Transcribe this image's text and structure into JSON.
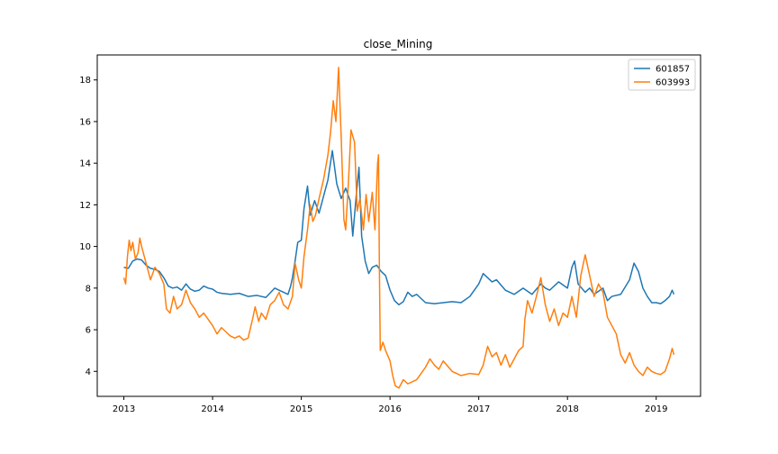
{
  "chart_data": {
    "type": "line",
    "title": "close_Mining",
    "xlabel": "",
    "ylabel": "",
    "x_ticks": [
      "2013",
      "2014",
      "2015",
      "2016",
      "2017",
      "2018",
      "2019"
    ],
    "y_ticks": [
      4,
      6,
      8,
      10,
      12,
      14,
      16,
      18
    ],
    "xlim": [
      2012.7,
      2019.5
    ],
    "ylim": [
      2.8,
      19.2
    ],
    "grid": false,
    "legend_position": "top-right",
    "series": [
      {
        "name": "601857",
        "color": "#1f77b4",
        "points": [
          [
            2013.0,
            9.0
          ],
          [
            2013.05,
            8.95
          ],
          [
            2013.1,
            9.3
          ],
          [
            2013.15,
            9.4
          ],
          [
            2013.2,
            9.35
          ],
          [
            2013.25,
            9.1
          ],
          [
            2013.3,
            8.95
          ],
          [
            2013.35,
            8.9
          ],
          [
            2013.4,
            8.8
          ],
          [
            2013.45,
            8.5
          ],
          [
            2013.5,
            8.1
          ],
          [
            2013.55,
            8.0
          ],
          [
            2013.6,
            8.05
          ],
          [
            2013.65,
            7.9
          ],
          [
            2013.7,
            8.2
          ],
          [
            2013.75,
            7.95
          ],
          [
            2013.8,
            7.85
          ],
          [
            2013.85,
            7.9
          ],
          [
            2013.9,
            8.1
          ],
          [
            2013.95,
            8.0
          ],
          [
            2014.0,
            7.95
          ],
          [
            2014.05,
            7.8
          ],
          [
            2014.1,
            7.75
          ],
          [
            2014.2,
            7.7
          ],
          [
            2014.3,
            7.75
          ],
          [
            2014.4,
            7.6
          ],
          [
            2014.5,
            7.65
          ],
          [
            2014.6,
            7.55
          ],
          [
            2014.7,
            8.0
          ],
          [
            2014.75,
            7.9
          ],
          [
            2014.8,
            7.8
          ],
          [
            2014.85,
            7.7
          ],
          [
            2014.88,
            8.1
          ],
          [
            2014.9,
            8.5
          ],
          [
            2014.93,
            9.3
          ],
          [
            2014.96,
            10.2
          ],
          [
            2015.0,
            10.3
          ],
          [
            2015.03,
            11.8
          ],
          [
            2015.07,
            12.9
          ],
          [
            2015.1,
            11.5
          ],
          [
            2015.15,
            12.2
          ],
          [
            2015.2,
            11.6
          ],
          [
            2015.25,
            12.4
          ],
          [
            2015.3,
            13.2
          ],
          [
            2015.35,
            14.6
          ],
          [
            2015.4,
            13.0
          ],
          [
            2015.45,
            12.3
          ],
          [
            2015.5,
            12.8
          ],
          [
            2015.55,
            12.2
          ],
          [
            2015.58,
            10.5
          ],
          [
            2015.62,
            12.5
          ],
          [
            2015.65,
            13.8
          ],
          [
            2015.68,
            10.5
          ],
          [
            2015.72,
            9.3
          ],
          [
            2015.76,
            8.7
          ],
          [
            2015.8,
            9.0
          ],
          [
            2015.85,
            9.1
          ],
          [
            2015.9,
            8.8
          ],
          [
            2015.95,
            8.6
          ],
          [
            2016.0,
            7.9
          ],
          [
            2016.05,
            7.4
          ],
          [
            2016.1,
            7.2
          ],
          [
            2016.15,
            7.35
          ],
          [
            2016.2,
            7.8
          ],
          [
            2016.25,
            7.6
          ],
          [
            2016.3,
            7.7
          ],
          [
            2016.4,
            7.3
          ],
          [
            2016.5,
            7.25
          ],
          [
            2016.6,
            7.3
          ],
          [
            2016.7,
            7.35
          ],
          [
            2016.8,
            7.3
          ],
          [
            2016.9,
            7.6
          ],
          [
            2017.0,
            8.2
          ],
          [
            2017.05,
            8.7
          ],
          [
            2017.1,
            8.5
          ],
          [
            2017.15,
            8.3
          ],
          [
            2017.2,
            8.4
          ],
          [
            2017.3,
            7.9
          ],
          [
            2017.4,
            7.7
          ],
          [
            2017.5,
            8.0
          ],
          [
            2017.6,
            7.7
          ],
          [
            2017.7,
            8.2
          ],
          [
            2017.75,
            8.0
          ],
          [
            2017.8,
            7.9
          ],
          [
            2017.9,
            8.3
          ],
          [
            2018.0,
            8.0
          ],
          [
            2018.05,
            9.0
          ],
          [
            2018.08,
            9.3
          ],
          [
            2018.12,
            8.2
          ],
          [
            2018.2,
            7.8
          ],
          [
            2018.25,
            8.0
          ],
          [
            2018.3,
            7.7
          ],
          [
            2018.4,
            8.0
          ],
          [
            2018.45,
            7.4
          ],
          [
            2018.5,
            7.6
          ],
          [
            2018.6,
            7.7
          ],
          [
            2018.7,
            8.4
          ],
          [
            2018.75,
            9.2
          ],
          [
            2018.8,
            8.8
          ],
          [
            2018.85,
            8.0
          ],
          [
            2018.9,
            7.6
          ],
          [
            2018.95,
            7.3
          ],
          [
            2019.0,
            7.3
          ],
          [
            2019.05,
            7.25
          ],
          [
            2019.1,
            7.4
          ],
          [
            2019.15,
            7.6
          ],
          [
            2019.18,
            7.9
          ],
          [
            2019.2,
            7.7
          ]
        ]
      },
      {
        "name": "603993",
        "color": "#ff7f0e",
        "points": [
          [
            2013.0,
            8.5
          ],
          [
            2013.02,
            8.2
          ],
          [
            2013.04,
            9.5
          ],
          [
            2013.06,
            10.3
          ],
          [
            2013.08,
            9.8
          ],
          [
            2013.1,
            10.2
          ],
          [
            2013.13,
            9.4
          ],
          [
            2013.16,
            9.7
          ],
          [
            2013.18,
            10.4
          ],
          [
            2013.2,
            10.0
          ],
          [
            2013.25,
            9.2
          ],
          [
            2013.3,
            8.4
          ],
          [
            2013.35,
            9.0
          ],
          [
            2013.4,
            8.7
          ],
          [
            2013.45,
            8.2
          ],
          [
            2013.48,
            7.0
          ],
          [
            2013.52,
            6.8
          ],
          [
            2013.56,
            7.6
          ],
          [
            2013.6,
            7.0
          ],
          [
            2013.65,
            7.2
          ],
          [
            2013.7,
            7.9
          ],
          [
            2013.75,
            7.3
          ],
          [
            2013.8,
            7.0
          ],
          [
            2013.85,
            6.6
          ],
          [
            2013.9,
            6.8
          ],
          [
            2013.95,
            6.5
          ],
          [
            2014.0,
            6.2
          ],
          [
            2014.05,
            5.8
          ],
          [
            2014.1,
            6.1
          ],
          [
            2014.15,
            5.9
          ],
          [
            2014.2,
            5.7
          ],
          [
            2014.25,
            5.6
          ],
          [
            2014.3,
            5.7
          ],
          [
            2014.35,
            5.5
          ],
          [
            2014.4,
            5.6
          ],
          [
            2014.45,
            6.5
          ],
          [
            2014.48,
            7.1
          ],
          [
            2014.52,
            6.4
          ],
          [
            2014.55,
            6.8
          ],
          [
            2014.6,
            6.5
          ],
          [
            2014.65,
            7.2
          ],
          [
            2014.7,
            7.4
          ],
          [
            2014.75,
            7.8
          ],
          [
            2014.8,
            7.2
          ],
          [
            2014.85,
            7.0
          ],
          [
            2014.9,
            7.6
          ],
          [
            2014.93,
            9.2
          ],
          [
            2014.97,
            8.4
          ],
          [
            2015.0,
            8.0
          ],
          [
            2015.03,
            9.5
          ],
          [
            2015.07,
            10.8
          ],
          [
            2015.1,
            12.0
          ],
          [
            2015.13,
            11.2
          ],
          [
            2015.16,
            11.5
          ],
          [
            2015.2,
            12.3
          ],
          [
            2015.25,
            13.2
          ],
          [
            2015.3,
            14.4
          ],
          [
            2015.33,
            15.5
          ],
          [
            2015.36,
            17.0
          ],
          [
            2015.39,
            16.0
          ],
          [
            2015.42,
            18.6
          ],
          [
            2015.45,
            15.2
          ],
          [
            2015.48,
            11.3
          ],
          [
            2015.5,
            10.8
          ],
          [
            2015.53,
            13.0
          ],
          [
            2015.56,
            15.6
          ],
          [
            2015.6,
            15.0
          ],
          [
            2015.63,
            11.7
          ],
          [
            2015.66,
            12.3
          ],
          [
            2015.7,
            10.8
          ],
          [
            2015.73,
            12.5
          ],
          [
            2015.76,
            11.2
          ],
          [
            2015.8,
            12.6
          ],
          [
            2015.83,
            10.8
          ],
          [
            2015.86,
            14.0
          ],
          [
            2015.87,
            14.4
          ],
          [
            2015.88,
            9.0
          ],
          [
            2015.89,
            5.0
          ],
          [
            2015.92,
            5.4
          ],
          [
            2015.95,
            5.0
          ],
          [
            2016.0,
            4.5
          ],
          [
            2016.03,
            3.8
          ],
          [
            2016.06,
            3.3
          ],
          [
            2016.1,
            3.2
          ],
          [
            2016.15,
            3.6
          ],
          [
            2016.2,
            3.4
          ],
          [
            2016.3,
            3.6
          ],
          [
            2016.4,
            4.2
          ],
          [
            2016.45,
            4.6
          ],
          [
            2016.5,
            4.3
          ],
          [
            2016.55,
            4.1
          ],
          [
            2016.6,
            4.5
          ],
          [
            2016.7,
            4.0
          ],
          [
            2016.8,
            3.8
          ],
          [
            2016.9,
            3.9
          ],
          [
            2017.0,
            3.85
          ],
          [
            2017.05,
            4.3
          ],
          [
            2017.1,
            5.2
          ],
          [
            2017.15,
            4.7
          ],
          [
            2017.2,
            4.9
          ],
          [
            2017.25,
            4.3
          ],
          [
            2017.3,
            4.8
          ],
          [
            2017.35,
            4.2
          ],
          [
            2017.4,
            4.6
          ],
          [
            2017.45,
            5.0
          ],
          [
            2017.5,
            5.2
          ],
          [
            2017.52,
            6.5
          ],
          [
            2017.55,
            7.4
          ],
          [
            2017.6,
            6.8
          ],
          [
            2017.65,
            7.6
          ],
          [
            2017.7,
            8.5
          ],
          [
            2017.75,
            7.2
          ],
          [
            2017.8,
            6.4
          ],
          [
            2017.85,
            7.0
          ],
          [
            2017.9,
            6.2
          ],
          [
            2017.95,
            6.8
          ],
          [
            2018.0,
            6.6
          ],
          [
            2018.05,
            7.6
          ],
          [
            2018.1,
            6.6
          ],
          [
            2018.15,
            8.6
          ],
          [
            2018.2,
            9.6
          ],
          [
            2018.25,
            8.6
          ],
          [
            2018.3,
            7.6
          ],
          [
            2018.35,
            8.2
          ],
          [
            2018.4,
            7.8
          ],
          [
            2018.45,
            6.6
          ],
          [
            2018.5,
            6.2
          ],
          [
            2018.55,
            5.8
          ],
          [
            2018.6,
            4.8
          ],
          [
            2018.65,
            4.4
          ],
          [
            2018.7,
            4.9
          ],
          [
            2018.75,
            4.3
          ],
          [
            2018.8,
            4.0
          ],
          [
            2018.85,
            3.8
          ],
          [
            2018.9,
            4.2
          ],
          [
            2018.95,
            4.0
          ],
          [
            2019.0,
            3.9
          ],
          [
            2019.05,
            3.85
          ],
          [
            2019.1,
            4.0
          ],
          [
            2019.15,
            4.6
          ],
          [
            2019.18,
            5.1
          ],
          [
            2019.2,
            4.8
          ]
        ]
      }
    ]
  }
}
